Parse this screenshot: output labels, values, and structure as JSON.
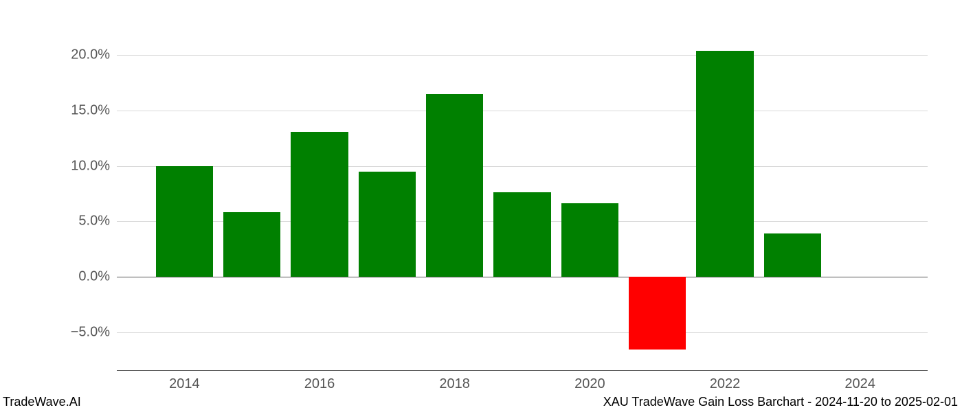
{
  "chart": {
    "type": "bar",
    "background_color": "#ffffff",
    "grid_color": "#d9d9d9",
    "axis_color": "#555555",
    "tick_label_color": "#555555",
    "tick_fontsize": 20,
    "footer_fontsize": 18,
    "footer_color": "#000000",
    "positive_color": "#008000",
    "negative_color": "#ff0000",
    "bar_width": 0.85,
    "ylim": [
      -8.5,
      22.5
    ],
    "yticks": [
      -5.0,
      0.0,
      5.0,
      10.0,
      15.0,
      20.0
    ],
    "ytick_labels": [
      "−5.0%",
      "0.0%",
      "5.0%",
      "10.0%",
      "15.0%",
      "20.0%"
    ],
    "xlim": [
      2013,
      2025
    ],
    "xticks": [
      2014,
      2016,
      2018,
      2020,
      2022,
      2024
    ],
    "xtick_labels": [
      "2014",
      "2016",
      "2018",
      "2020",
      "2022",
      "2024"
    ],
    "years": [
      2014,
      2015,
      2016,
      2017,
      2018,
      2019,
      2020,
      2021,
      2022,
      2023
    ],
    "values": [
      10.0,
      5.8,
      13.1,
      9.5,
      16.5,
      7.6,
      6.6,
      -6.6,
      20.4,
      3.9
    ]
  },
  "footer": {
    "left": "TradeWave.AI",
    "right": "XAU TradeWave Gain Loss Barchart - 2024-11-20 to 2025-02-01"
  }
}
